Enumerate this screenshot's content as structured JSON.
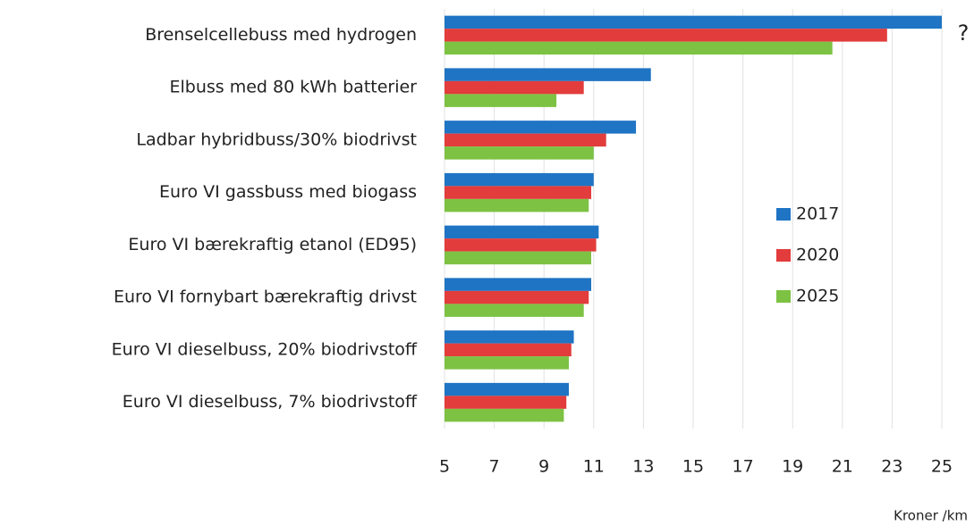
{
  "chart_data": {
    "type": "barh",
    "categories": [
      "Brenselcellebuss med hydrogen",
      "Elbuss med 80 kWh batterier",
      "Ladbar hybridbuss/30% biodrivst",
      "Euro VI gassbuss med biogass",
      "Euro VI bærekraftig etanol (ED95)",
      "Euro VI fornybart bærekraftig drivst",
      "Euro VI dieselbuss, 20% biodrivstoff",
      "Euro VI dieselbuss, 7% biodrivstoff"
    ],
    "series": [
      {
        "name": "2017",
        "color": "#1f74c4",
        "values": [
          25,
          13.3,
          12.7,
          11.0,
          11.2,
          10.9,
          10.2,
          10.0
        ]
      },
      {
        "name": "2020",
        "color": "#e23c3c",
        "values": [
          22.8,
          10.6,
          11.5,
          10.9,
          11.1,
          10.8,
          10.1,
          9.9
        ]
      },
      {
        "name": "2025",
        "color": "#7dc243",
        "values": [
          20.6,
          9.5,
          11.0,
          10.8,
          10.9,
          10.6,
          10.0,
          9.8
        ]
      }
    ],
    "xlim": [
      5,
      25
    ],
    "xticks": [
      5,
      7,
      9,
      11,
      13,
      15,
      17,
      19,
      21,
      23,
      25
    ],
    "xlabel": "Kroner /km",
    "annotation": "?",
    "grid": true,
    "legend": "right"
  }
}
